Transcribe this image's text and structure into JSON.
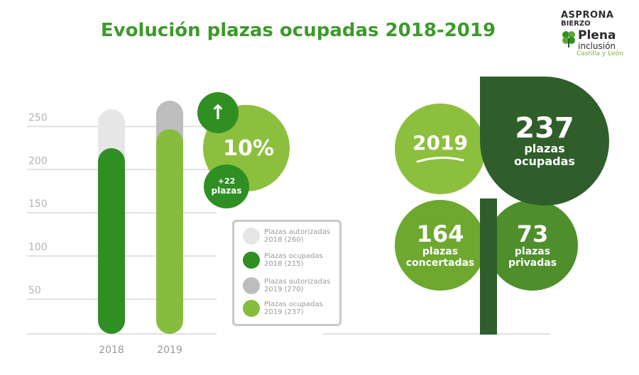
{
  "header": {
    "title": "Evolución plazas ocupadas 2018-2019",
    "logo": {
      "line1": "ASPRONA",
      "line2": "BIERZO",
      "line3": "Plena",
      "line4": "inclusión",
      "line5": "Castilla y León"
    }
  },
  "colors": {
    "authorized_2018": "#e6e6e6",
    "occupied_2018": "#2f8f23",
    "authorized_2019": "#bdbdbd",
    "occupied_2019": "#86bd3c",
    "dark_green": "#2f5e2b",
    "mid_green": "#4e8f2c",
    "light_green": "#8dbf3e"
  },
  "chart_data": {
    "type": "bar",
    "categories": [
      "2018",
      "2019"
    ],
    "series": [
      {
        "name": "Plazas autorizadas",
        "values": [
          260,
          270
        ]
      },
      {
        "name": "Plazas ocupadas",
        "values": [
          215,
          237
        ]
      }
    ],
    "yticks": [
      "250",
      "200",
      "150",
      "100",
      "50"
    ],
    "ytick_values": [
      250,
      200,
      150,
      100,
      50
    ],
    "ylim": [
      0,
      270
    ],
    "legend": {
      "placement": "right",
      "items": [
        {
          "label": "Plazas autorizadas 2018 (260)",
          "color": "#e6e6e6"
        },
        {
          "label": "Plazas ocupadas 2018 (215)",
          "color": "#2f8f23"
        },
        {
          "label": "Plazas autorizadas 2019 (270)",
          "color": "#bdbdbd"
        },
        {
          "label": "Plazas ocupadas 2019 (237)",
          "color": "#86bd3c"
        }
      ]
    }
  },
  "growth": {
    "arrow": "↑",
    "percent": "10%",
    "extra_count": "+22",
    "extra_label": "plazas"
  },
  "clover": {
    "year": "2019",
    "total_number": "237",
    "total_label_1": "plazas",
    "total_label_2": "ocupadas",
    "concertadas_number": "164",
    "concertadas_label_1": "plazas",
    "concertadas_label_2": "concertadas",
    "privadas_number": "73",
    "privadas_label_1": "plazas",
    "privadas_label_2": "privadas"
  }
}
